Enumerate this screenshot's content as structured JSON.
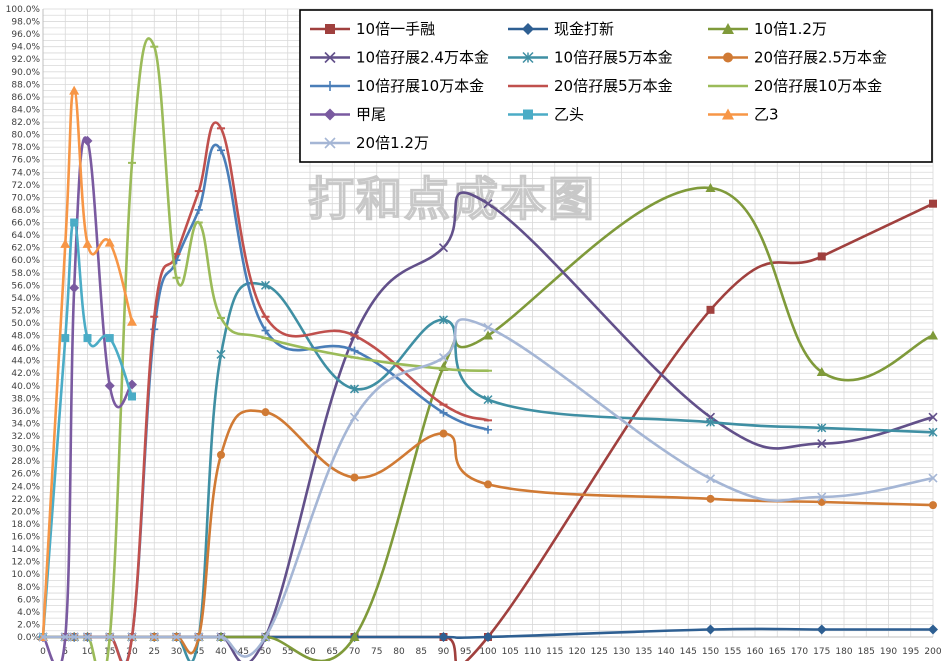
{
  "chart_data": {
    "type": "line",
    "title": "",
    "watermark": "打和点成本图",
    "xlabel": "",
    "ylabel": "",
    "xlim": [
      0,
      200
    ],
    "ylim": [
      0,
      1.0
    ],
    "grid": true,
    "legend_position": "top-right",
    "x_ticks": [
      0,
      5,
      10,
      15,
      20,
      25,
      30,
      35,
      40,
      45,
      50,
      55,
      60,
      65,
      70,
      75,
      80,
      85,
      90,
      95,
      100,
      105,
      110,
      115,
      120,
      125,
      130,
      135,
      140,
      145,
      150,
      155,
      160,
      165,
      170,
      175,
      180,
      185,
      190,
      195,
      200
    ],
    "y_tick_labels": [
      "0.0%",
      "2.0%",
      "4.0%",
      "6.0%",
      "8.0%",
      "10.0%",
      "12.0%",
      "14.0%",
      "16.0%",
      "18.0%",
      "20.0%",
      "22.0%",
      "24.0%",
      "26.0%",
      "28.0%",
      "30.0%",
      "32.0%",
      "34.0%",
      "36.0%",
      "38.0%",
      "40.0%",
      "42.0%",
      "44.0%",
      "46.0%",
      "48.0%",
      "50.0%",
      "52.0%",
      "54.0%",
      "56.0%",
      "58.0%",
      "60.0%",
      "62.0%",
      "64.0%",
      "66.0%",
      "68.0%",
      "70.0%",
      "72.0%",
      "74.0%",
      "76.0%",
      "78.0%",
      "80.0%",
      "82.0%",
      "84.0%",
      "86.0%",
      "88.0%",
      "90.0%",
      "92.0%",
      "94.0%",
      "96.0%",
      "98.0%",
      "100.0%"
    ],
    "series": [
      {
        "name": "10倍一手融",
        "color": "#a0403e",
        "marker": "square",
        "points": [
          [
            0,
            0
          ],
          [
            5,
            0
          ],
          [
            7,
            0
          ],
          [
            10,
            0
          ],
          [
            15,
            0
          ],
          [
            20,
            0
          ],
          [
            25,
            0
          ],
          [
            30,
            0
          ],
          [
            35,
            0
          ],
          [
            40,
            0
          ],
          [
            50,
            0
          ],
          [
            70,
            0
          ],
          [
            90,
            0
          ],
          [
            100,
            0
          ],
          [
            150,
            0.521
          ],
          [
            175,
            0.606
          ],
          [
            200,
            0.69
          ]
        ]
      },
      {
        "name": "现金打新",
        "color": "#2e5f92",
        "marker": "diamond",
        "points": [
          [
            0,
            0
          ],
          [
            5,
            0
          ],
          [
            7,
            0
          ],
          [
            10,
            0
          ],
          [
            15,
            0
          ],
          [
            20,
            0
          ],
          [
            25,
            0
          ],
          [
            30,
            0
          ],
          [
            35,
            0
          ],
          [
            40,
            0
          ],
          [
            50,
            0
          ],
          [
            70,
            0
          ],
          [
            90,
            0
          ],
          [
            100,
            0
          ],
          [
            150,
            0.012
          ],
          [
            175,
            0.012
          ],
          [
            200,
            0.012
          ]
        ]
      },
      {
        "name": "10倍1.2万",
        "color": "#7f9a3a",
        "marker": "triangle",
        "points": [
          [
            0,
            0
          ],
          [
            5,
            0
          ],
          [
            7,
            0
          ],
          [
            10,
            0
          ],
          [
            15,
            0
          ],
          [
            20,
            0
          ],
          [
            25,
            0
          ],
          [
            30,
            0
          ],
          [
            35,
            0
          ],
          [
            40,
            0
          ],
          [
            50,
            0
          ],
          [
            70,
            0
          ],
          [
            90,
            0.43
          ],
          [
            100,
            0.48
          ],
          [
            150,
            0.715
          ],
          [
            175,
            0.422
          ],
          [
            200,
            0.48
          ]
        ]
      },
      {
        "name": "10倍孖展2.4万本金",
        "color": "#62508a",
        "marker": "x",
        "points": [
          [
            0,
            0
          ],
          [
            5,
            0
          ],
          [
            7,
            0
          ],
          [
            10,
            0
          ],
          [
            15,
            0
          ],
          [
            20,
            0
          ],
          [
            25,
            0
          ],
          [
            30,
            0
          ],
          [
            35,
            0
          ],
          [
            40,
            0
          ],
          [
            50,
            0
          ],
          [
            70,
            0.48
          ],
          [
            90,
            0.62
          ],
          [
            100,
            0.69
          ],
          [
            150,
            0.35
          ],
          [
            175,
            0.308
          ],
          [
            200,
            0.35
          ]
        ]
      },
      {
        "name": "10倍孖展5万本金",
        "color": "#3f8fa3",
        "marker": "star",
        "points": [
          [
            0,
            0
          ],
          [
            5,
            0
          ],
          [
            7,
            0
          ],
          [
            10,
            0
          ],
          [
            15,
            0
          ],
          [
            20,
            0
          ],
          [
            25,
            0
          ],
          [
            30,
            0
          ],
          [
            35,
            0
          ],
          [
            40,
            0.45
          ],
          [
            50,
            0.56
          ],
          [
            70,
            0.395
          ],
          [
            90,
            0.505
          ],
          [
            100,
            0.378
          ],
          [
            150,
            0.342
          ],
          [
            175,
            0.333
          ],
          [
            200,
            0.326
          ]
        ]
      },
      {
        "name": "20倍孖展2.5万本金",
        "color": "#d07a34",
        "marker": "circle",
        "points": [
          [
            0,
            0
          ],
          [
            5,
            0
          ],
          [
            7,
            0
          ],
          [
            10,
            0
          ],
          [
            15,
            0
          ],
          [
            20,
            0
          ],
          [
            25,
            0
          ],
          [
            30,
            0
          ],
          [
            35,
            0
          ],
          [
            40,
            0.29
          ],
          [
            50,
            0.358
          ],
          [
            70,
            0.254
          ],
          [
            90,
            0.324
          ],
          [
            100,
            0.243
          ],
          [
            150,
            0.22
          ],
          [
            175,
            0.215
          ],
          [
            200,
            0.21
          ]
        ]
      },
      {
        "name": "10倍孖展10万本金",
        "color": "#4a7eb8",
        "marker": "plus",
        "points": [
          [
            0,
            0
          ],
          [
            5,
            0
          ],
          [
            7,
            0
          ],
          [
            10,
            0
          ],
          [
            15,
            0
          ],
          [
            20,
            0
          ],
          [
            25,
            0.49
          ],
          [
            30,
            0.6
          ],
          [
            35,
            0.68
          ],
          [
            40,
            0.775
          ],
          [
            50,
            0.488
          ],
          [
            70,
            0.456
          ],
          [
            90,
            0.357
          ],
          [
            100,
            0.33
          ]
        ]
      },
      {
        "name": "20倍孖展5万本金",
        "color": "#c0504d",
        "marker": "dash",
        "points": [
          [
            0,
            0
          ],
          [
            5,
            0
          ],
          [
            7,
            0
          ],
          [
            10,
            0
          ],
          [
            15,
            0
          ],
          [
            20,
            0
          ],
          [
            25,
            0.51
          ],
          [
            30,
            0.61
          ],
          [
            35,
            0.71
          ],
          [
            40,
            0.81
          ],
          [
            50,
            0.51
          ],
          [
            70,
            0.48
          ],
          [
            90,
            0.37
          ],
          [
            100,
            0.345
          ]
        ]
      },
      {
        "name": "20倍孖展10万本金",
        "color": "#9bbb59",
        "marker": "dash",
        "points": [
          [
            0,
            0
          ],
          [
            5,
            0
          ],
          [
            7,
            0
          ],
          [
            10,
            0
          ],
          [
            15,
            0
          ],
          [
            20,
            0.755
          ],
          [
            25,
            0.94
          ],
          [
            30,
            0.572
          ],
          [
            35,
            0.66
          ],
          [
            40,
            0.508
          ],
          [
            50,
            0.476
          ],
          [
            70,
            0.445
          ],
          [
            90,
            0.427
          ],
          [
            100,
            0.424
          ]
        ]
      },
      {
        "name": "甲尾",
        "color": "#7a5aa0",
        "marker": "diamond",
        "points": [
          [
            0,
            0
          ],
          [
            5,
            0
          ],
          [
            7,
            0.556
          ],
          [
            10,
            0.79
          ],
          [
            15,
            0.4
          ],
          [
            20,
            0.402
          ]
        ]
      },
      {
        "name": "乙头",
        "color": "#4bacc6",
        "marker": "square",
        "points": [
          [
            0,
            0
          ],
          [
            5,
            0.476
          ],
          [
            7,
            0.66
          ],
          [
            10,
            0.476
          ],
          [
            15,
            0.476
          ],
          [
            20,
            0.383
          ]
        ]
      },
      {
        "name": "乙3",
        "color": "#f79646",
        "marker": "triangle",
        "points": [
          [
            0,
            0
          ],
          [
            5,
            0.626
          ],
          [
            7,
            0.87
          ],
          [
            10,
            0.626
          ],
          [
            15,
            0.628
          ],
          [
            20,
            0.502
          ]
        ]
      },
      {
        "name": "20倍1.2万",
        "color": "#a5b6d5",
        "marker": "x",
        "points": [
          [
            0,
            0
          ],
          [
            5,
            0
          ],
          [
            7,
            0
          ],
          [
            10,
            0
          ],
          [
            15,
            0
          ],
          [
            20,
            0
          ],
          [
            25,
            0
          ],
          [
            30,
            0
          ],
          [
            35,
            0
          ],
          [
            40,
            0
          ],
          [
            50,
            0
          ],
          [
            70,
            0.35
          ],
          [
            90,
            0.445
          ],
          [
            100,
            0.493
          ],
          [
            150,
            0.252
          ],
          [
            175,
            0.223
          ],
          [
            200,
            0.253
          ]
        ]
      }
    ]
  }
}
